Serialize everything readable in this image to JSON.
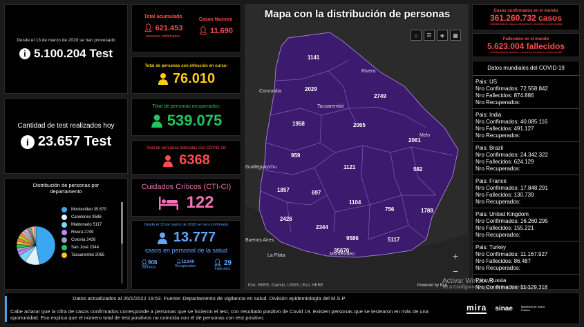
{
  "left": {
    "processed": {
      "caption": "Desde el 13 de marzo de 2020 se han procesado",
      "value": "5.100.204 Test"
    },
    "today": {
      "caption": "Cantidad de test realizados hoy",
      "value": "23.657 Test"
    },
    "distribution": {
      "title": "Distribución de personas por departamento",
      "items": [
        {
          "label": "Montevideo 35.670",
          "color": "#3ba7f0"
        },
        {
          "label": "Canelones 9586",
          "color": "#e0f2fe"
        },
        {
          "label": "Maldonado 5117",
          "color": "#7dd3fc"
        },
        {
          "label": "Rivera 2749",
          "color": "#c084fc"
        },
        {
          "label": "Colonia 2426",
          "color": "#94a3b8"
        },
        {
          "label": "San José 2344",
          "color": "#22c55e"
        },
        {
          "label": "Tacuarembó 2065",
          "color": "#fbbf24"
        }
      ],
      "pie": [
        35670,
        9586,
        5117,
        2749,
        2426,
        2344,
        2065,
        2029,
        1958,
        1857,
        1788,
        1141,
        1104,
        959,
        756,
        697,
        582,
        2061,
        1121
      ]
    }
  },
  "mid": {
    "acumulado": {
      "label": "Total acumulado",
      "value": "621.453",
      "sub": "personas confirmadas"
    },
    "nuevos": {
      "label": "Casos Nuevos",
      "value": "11.690"
    },
    "curso": {
      "label": "Total de personas con infección en curso:",
      "value": "76.010"
    },
    "recuperadas": {
      "label": "Total de personas recuperadas:",
      "value": "539.075"
    },
    "fallecidas": {
      "label": "Total de personas fallecidas con COVID-19:",
      "value": "6368"
    },
    "cti": {
      "label": "Cuidados Críticos (CTI-CI)",
      "value": "122"
    },
    "salud": {
      "caption": "Desde el 13 de marzo de 2020 se han confirmado",
      "value": "13.777",
      "sub": "casos en personal de la salud",
      "activos": {
        "value": "908",
        "label": "Activos"
      },
      "recuperados": {
        "value": "12.840",
        "label": "Recuperados"
      },
      "fallecidos": {
        "value": "29",
        "label": "Fallecidos"
      }
    }
  },
  "map": {
    "title": "Mapa con la distribución de personas",
    "attribution": "Esri, HERE, Garmin, USGS | Esri, HERE",
    "powered": "Powered by Esri",
    "cities": [
      "Concordia",
      "Rivera",
      "Tacuarembó",
      "Melo",
      "Gualeguaychu",
      "Buenos Aires",
      "La Plata",
      "Montevideo"
    ],
    "departments": [
      "1141",
      "2029",
      "2749",
      "1958",
      "2065",
      "2061",
      "959",
      "1121",
      "582",
      "1857",
      "697",
      "1104",
      "756",
      "1788",
      "2426",
      "2344",
      "9586",
      "5117",
      "35670"
    ],
    "zoom_in": "+",
    "zoom_out": "−"
  },
  "right": {
    "world_cases": {
      "label": "Casos confirmados en el mundo",
      "value": "361.260.732 casos",
      "sub": "Cantidad total de casos confirmados de coronavirus a nivel mundial"
    },
    "world_deaths": {
      "label": "Fallecidos en el mundo",
      "value": "5.623.004 fallecidos",
      "sub": "Cantidad total de fallecidos a causa del coronavirus a nivel mundial"
    },
    "list_title": "Datos mundiales del COVID-19",
    "countries": [
      {
        "pais": "Pais: US",
        "conf": "Nro Confirmados: 72.558.842",
        "fall": "Nro Fallecidos: 874.886",
        "rec": "Nro Recuperados:"
      },
      {
        "pais": "Pais: India",
        "conf": "Nro Confirmados: 40.085.116",
        "fall": "Nro Fallecidos: 491.127",
        "rec": "Nro Recuperados:"
      },
      {
        "pais": "Pais: Brazil",
        "conf": "Nro Confirmados: 24.342.322",
        "fall": "Nro Fallecidos: 624.129",
        "rec": "Nro Recuperados:"
      },
      {
        "pais": "Pais: France",
        "conf": "Nro Confirmados: 17.848.291",
        "fall": "Nro Fallecidos: 130.739",
        "rec": "Nro Recuperados:"
      },
      {
        "pais": "Pais: United Kingdom",
        "conf": "Nro Confirmados: 16.260.295",
        "fall": "Nro Fallecidos: 155.221",
        "rec": "Nro Recuperados:"
      },
      {
        "pais": "Pais: Turkey",
        "conf": "Nro Confirmados: 11.167.927",
        "fall": "Nro Fallecidos: 86.487",
        "rec": "Nro Recuperados:"
      },
      {
        "pais": "Pais: Russia",
        "conf": "Nro Confirmados: 11.129.318",
        "fall": "",
        "rec": ""
      }
    ]
  },
  "footer": {
    "updated": "Datos actualizados al 26/1/2022 19:53. Fuente: Departamento de vigilancia en salud. División epidemiología del M.S.P.",
    "note": "Cabe aclarar que la cifra de casos confirmados corresponde a personas que se hicieron el test, con resultado positivo de Covid 19. Existen personas que se testearon en más de una oportunidad. Eso explica que el número total de test positivos no coincida con el de personas con test positivo.",
    "logos": [
      "mira",
      "sinae",
      "Ministerio de Salud Pública"
    ]
  },
  "watermark": {
    "line1": "Activar Windows",
    "line2": "Ve a Configuración para activar Windows."
  }
}
